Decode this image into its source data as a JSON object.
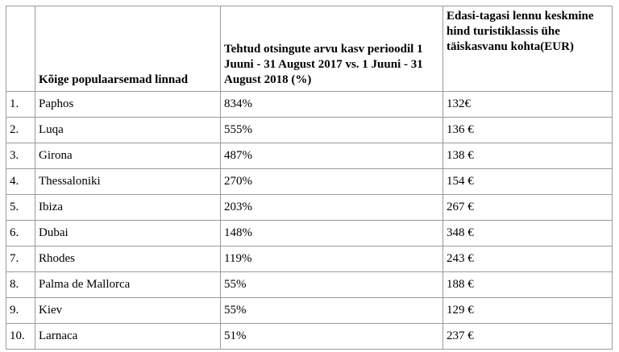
{
  "table": {
    "headers": [
      "",
      "Kõige populaarsemad linnad",
      "Tehtud otsingute arvu kasv perioodil 1 Juuni - 31 August 2017 vs. 1 Juuni - 31 August 2018 (%)",
      "Edasi-tagasi lennu keskmine hind turistiklassis ühe täiskasvanu kohta(EUR)"
    ],
    "rows": [
      [
        "1.",
        "Paphos",
        "834%",
        "132€"
      ],
      [
        "2.",
        "Luqa",
        "555%",
        "136 €"
      ],
      [
        "3.",
        "Girona",
        "487%",
        "138 €"
      ],
      [
        "4.",
        "Thessaloniki",
        "270%",
        "154 €"
      ],
      [
        "5.",
        "Ibiza",
        "203%",
        "267 €"
      ],
      [
        "6.",
        "Dubai",
        "148%",
        "348 €"
      ],
      [
        "7.",
        "Rhodes",
        "119%",
        "243 €"
      ],
      [
        "8.",
        "Palma de Mallorca",
        "55%",
        "188 €"
      ],
      [
        "9.",
        "Kiev",
        "55%",
        "129 €"
      ],
      [
        "10.",
        "Larnaca",
        "51%",
        "237 €"
      ]
    ]
  }
}
